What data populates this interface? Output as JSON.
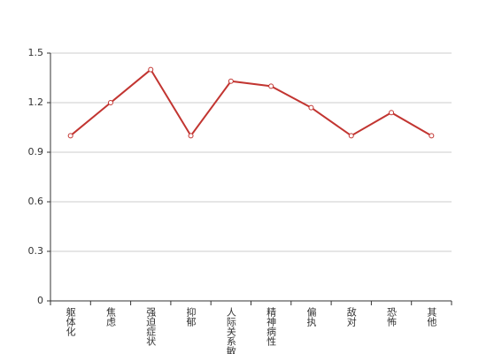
{
  "chart_data": {
    "type": "line",
    "categories": [
      "躯体化",
      "焦虑",
      "强迫症状",
      "抑郁",
      "人际关系敏感",
      "精神病性",
      "偏执",
      "敌对",
      "恐怖",
      "其他"
    ],
    "series": [
      {
        "color": "#c23531",
        "values": [
          1.0,
          1.2,
          1.4,
          1.0,
          1.33,
          1.3,
          1.17,
          1.0,
          1.14,
          1.0
        ]
      }
    ],
    "ylim": [
      0,
      1.5
    ],
    "yticks": [
      0,
      {
        "value": 0.3,
        "label": "0.3"
      },
      {
        "value": 0.6,
        "label": "0.6"
      },
      {
        "value": 0.9,
        "label": "0.9"
      },
      {
        "value": 1.2,
        "label": "1.2"
      },
      {
        "value": 1.5,
        "label": "1.5"
      }
    ],
    "grid": true
  }
}
